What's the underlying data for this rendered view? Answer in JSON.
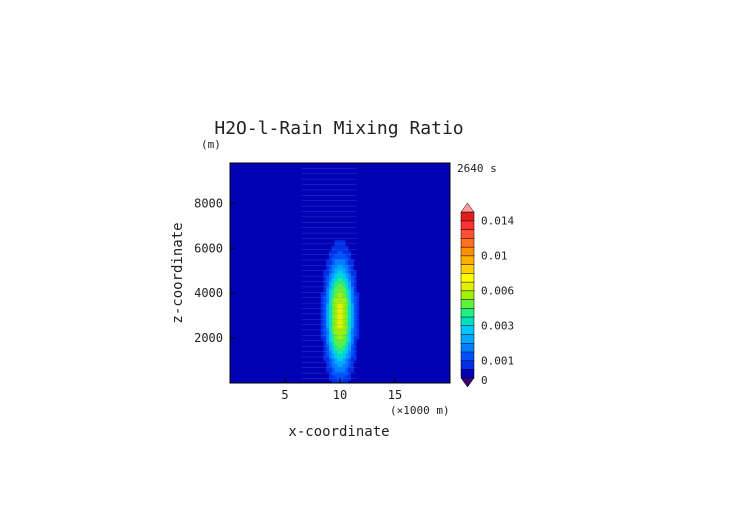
{
  "chart_data": {
    "type": "heatmap",
    "title": "H2O-l-Rain Mixing Ratio",
    "time_label": "2640 s",
    "xlabel": "x-coordinate",
    "ylabel": "z-coordinate",
    "x_unit": "(×1000 m)",
    "y_unit": "(m)",
    "xlim": [
      0,
      20
    ],
    "ylim": [
      0,
      9800
    ],
    "x_ticks": [
      5,
      10,
      15
    ],
    "y_ticks": [
      2000,
      4000,
      6000,
      8000
    ],
    "field": {
      "center_x": 10,
      "center_z": 3000,
      "peak_value": 0.0065,
      "description_levels": "filled contours"
    },
    "colorbar": {
      "levels": [
        0,
        0.0005,
        0.001,
        0.0015,
        0.002,
        0.0025,
        0.003,
        0.0035,
        0.004,
        0.005,
        0.006,
        0.007,
        0.008,
        0.009,
        0.01,
        0.011,
        0.012,
        0.013,
        0.014,
        0.015
      ],
      "colors": [
        "#0000b4",
        "#0030e6",
        "#0050ff",
        "#0080ff",
        "#00a8ff",
        "#00c8ff",
        "#00e0c0",
        "#20f080",
        "#60f040",
        "#a0f000",
        "#e0f000",
        "#ffff00",
        "#ffd000",
        "#ffb000",
        "#ff9000",
        "#ff7020",
        "#ff5030",
        "#ff3030",
        "#e02020"
      ],
      "under_color": "#3a0070",
      "over_color": "#ff9a9a",
      "labels": [
        {
          "value": 0,
          "text": "0"
        },
        {
          "value": 0.001,
          "text": "0.001"
        },
        {
          "value": 0.003,
          "text": "0.003"
        },
        {
          "value": 0.006,
          "text": "0.006"
        },
        {
          "value": 0.01,
          "text": "0.01"
        },
        {
          "value": 0.014,
          "text": "0.014"
        }
      ]
    }
  }
}
